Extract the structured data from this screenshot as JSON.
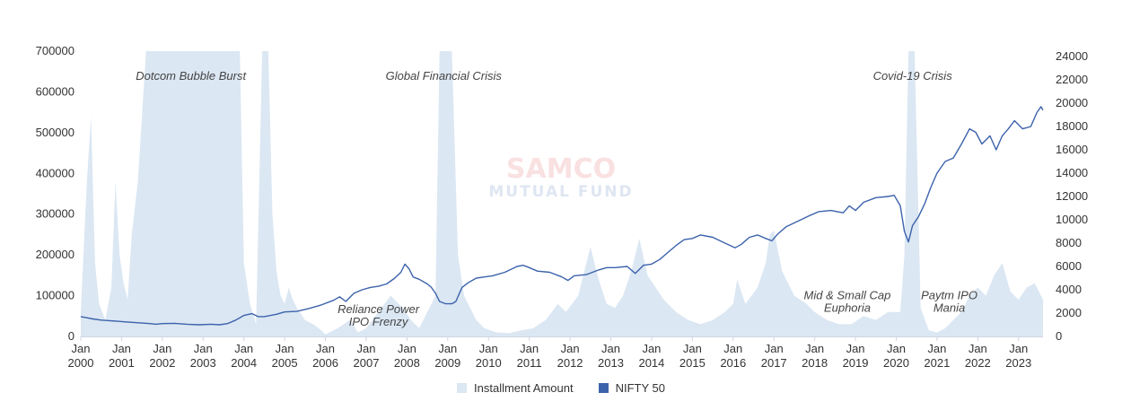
{
  "colors": {
    "installment": "#dbe7f3",
    "nifty": "#3c62ab",
    "axis": "#cfd6e0"
  },
  "watermark": {
    "line1": "SAMCO",
    "line2": "MUTUAL FUND"
  },
  "chart_data": {
    "type": "bar+line",
    "x_range": [
      2000.0,
      2023.6
    ],
    "x_ticks": [
      {
        "pos": 2000,
        "month": "Jan",
        "year": "2000"
      },
      {
        "pos": 2001,
        "month": "Jan",
        "year": "2001"
      },
      {
        "pos": 2002,
        "month": "Jan",
        "year": "2002"
      },
      {
        "pos": 2003,
        "month": "Jan",
        "year": "2003"
      },
      {
        "pos": 2004,
        "month": "Jan",
        "year": "2004"
      },
      {
        "pos": 2005,
        "month": "Jan",
        "year": "2005"
      },
      {
        "pos": 2006,
        "month": "Jan",
        "year": "2006"
      },
      {
        "pos": 2007,
        "month": "Jan",
        "year": "2007"
      },
      {
        "pos": 2008,
        "month": "Jan",
        "year": "2008"
      },
      {
        "pos": 2009,
        "month": "Jan",
        "year": "2009"
      },
      {
        "pos": 2010,
        "month": "Jan",
        "year": "2010"
      },
      {
        "pos": 2011,
        "month": "Jan",
        "year": "2011"
      },
      {
        "pos": 2012,
        "month": "Jan",
        "year": "2012"
      },
      {
        "pos": 2013,
        "month": "Jan",
        "year": "2013"
      },
      {
        "pos": 2014,
        "month": "Jan",
        "year": "2014"
      },
      {
        "pos": 2015,
        "month": "Jan",
        "year": "2015"
      },
      {
        "pos": 2016,
        "month": "Jan",
        "year": "2016"
      },
      {
        "pos": 2017,
        "month": "Jan",
        "year": "2017"
      },
      {
        "pos": 2018,
        "month": "Jan",
        "year": "2018"
      },
      {
        "pos": 2019,
        "month": "Jan",
        "year": "2019"
      },
      {
        "pos": 2020,
        "month": "Jan",
        "year": "2020"
      },
      {
        "pos": 2021,
        "month": "Jan",
        "year": "2021"
      },
      {
        "pos": 2022,
        "month": "Jan",
        "year": "2022"
      },
      {
        "pos": 2023,
        "month": "Jan",
        "year": "2023"
      }
    ],
    "y_left": {
      "min": 0,
      "max": 700000,
      "ticks": [
        "0",
        "100000",
        "200000",
        "300000",
        "400000",
        "500000",
        "600000",
        "700000"
      ]
    },
    "y_right": {
      "min": 0,
      "max": 24000,
      "ticks": [
        "0",
        "2000",
        "4000",
        "6000",
        "8000",
        "10000",
        "12000",
        "14000",
        "16000",
        "18000",
        "20000",
        "22000",
        "24000"
      ]
    },
    "legend": {
      "position": "bottom-center",
      "items": [
        "Installment Amount",
        "NIFTY 50"
      ]
    },
    "annotations": [
      {
        "x": 2002.7,
        "y": 22000,
        "lines": [
          "Dotcom Bubble Burst"
        ]
      },
      {
        "x": 2008.9,
        "y": 22000,
        "lines": [
          "Global Financial Crisis"
        ]
      },
      {
        "x": 2020.4,
        "y": 22000,
        "lines": [
          "Covid-19 Crisis"
        ]
      },
      {
        "x": 2007.3,
        "y": 2000,
        "lines": [
          "Reliance Power",
          "IPO Frenzy"
        ]
      },
      {
        "x": 2018.8,
        "y": 3200,
        "lines": [
          "Mid & Small Cap",
          "Euphoria"
        ]
      },
      {
        "x": 2021.3,
        "y": 3200,
        "lines": [
          "Paytm IPO",
          "Mania"
        ]
      }
    ],
    "series": [
      {
        "name": "Installment Amount",
        "type": "area",
        "axis": "left",
        "x": [
          2000.0,
          2000.15,
          2000.25,
          2000.35,
          2000.45,
          2000.6,
          2000.75,
          2000.85,
          2000.95,
          2001.05,
          2001.15,
          2001.25,
          2001.4,
          2001.6,
          2001.75,
          2001.9,
          2002.0,
          2002.5,
          2003.0,
          2003.5,
          2003.9,
          2004.0,
          2004.15,
          2004.3,
          2004.45,
          2004.5,
          2004.6,
          2004.7,
          2004.8,
          2004.9,
          2005.0,
          2005.1,
          2005.2,
          2005.3,
          2005.5,
          2005.7,
          2005.9,
          2006.0,
          2006.3,
          2006.6,
          2006.8,
          2007.0,
          2007.3,
          2007.6,
          2007.9,
          2008.1,
          2008.3,
          2008.5,
          2008.7,
          2008.8,
          2008.9,
          2009.1,
          2009.25,
          2009.4,
          2009.5,
          2009.7,
          2009.9,
          2010.2,
          2010.5,
          2010.8,
          2011.1,
          2011.4,
          2011.7,
          2011.9,
          2012.2,
          2012.4,
          2012.5,
          2012.7,
          2012.9,
          2013.1,
          2013.3,
          2013.5,
          2013.7,
          2013.9,
          2014.1,
          2014.3,
          2014.6,
          2014.9,
          2015.2,
          2015.5,
          2015.8,
          2016.0,
          2016.1,
          2016.3,
          2016.6,
          2016.8,
          2016.9,
          2017.0,
          2017.2,
          2017.5,
          2017.8,
          2018.0,
          2018.3,
          2018.6,
          2018.9,
          2019.2,
          2019.5,
          2019.8,
          2020.1,
          2020.2,
          2020.3,
          2020.45,
          2020.6,
          2020.8,
          2021.0,
          2021.2,
          2021.4,
          2021.6,
          2021.8,
          2022.0,
          2022.2,
          2022.4,
          2022.6,
          2022.8,
          2023.0,
          2023.2,
          2023.4,
          2023.6
        ],
        "values": [
          60000,
          380000,
          540000,
          180000,
          80000,
          40000,
          120000,
          380000,
          200000,
          130000,
          90000,
          250000,
          380000,
          700000,
          700000,
          700000,
          700000,
          700000,
          700000,
          700000,
          700000,
          180000,
          80000,
          30000,
          700000,
          700000,
          700000,
          300000,
          160000,
          100000,
          80000,
          120000,
          90000,
          70000,
          40000,
          30000,
          15000,
          5000,
          20000,
          40000,
          10000,
          20000,
          60000,
          100000,
          70000,
          40000,
          20000,
          60000,
          100000,
          700000,
          700000,
          700000,
          200000,
          100000,
          80000,
          40000,
          20000,
          10000,
          8000,
          15000,
          20000,
          40000,
          80000,
          60000,
          100000,
          180000,
          220000,
          140000,
          80000,
          70000,
          100000,
          160000,
          240000,
          150000,
          120000,
          90000,
          60000,
          40000,
          30000,
          40000,
          60000,
          80000,
          140000,
          80000,
          120000,
          180000,
          250000,
          260000,
          160000,
          100000,
          80000,
          60000,
          40000,
          30000,
          30000,
          50000,
          40000,
          60000,
          60000,
          200000,
          700000,
          700000,
          70000,
          15000,
          10000,
          20000,
          40000,
          60000,
          100000,
          120000,
          100000,
          150000,
          180000,
          110000,
          90000,
          120000,
          130000,
          90000
        ]
      },
      {
        "name": "NIFTY 50",
        "type": "line",
        "axis": "right",
        "x": [
          2000.0,
          2000.15,
          2000.3,
          2000.5,
          2000.7,
          2000.9,
          2001.1,
          2001.3,
          2001.5,
          2001.7,
          2001.85,
          2002.0,
          2002.3,
          2002.6,
          2002.9,
          2003.2,
          2003.4,
          2003.6,
          2003.8,
          2004.0,
          2004.2,
          2004.35,
          2004.5,
          2004.8,
          2005.0,
          2005.3,
          2005.6,
          2005.9,
          2006.2,
          2006.35,
          2006.5,
          2006.7,
          2006.9,
          2007.1,
          2007.3,
          2007.5,
          2007.7,
          2007.85,
          2007.95,
          2008.05,
          2008.15,
          2008.3,
          2008.5,
          2008.6,
          2008.7,
          2008.8,
          2008.95,
          2009.1,
          2009.2,
          2009.35,
          2009.5,
          2009.7,
          2009.9,
          2010.1,
          2010.4,
          2010.7,
          2010.85,
          2011.0,
          2011.2,
          2011.5,
          2011.8,
          2011.95,
          2012.1,
          2012.4,
          2012.7,
          2012.9,
          2013.1,
          2013.4,
          2013.6,
          2013.8,
          2014.0,
          2014.2,
          2014.4,
          2014.6,
          2014.8,
          2015.0,
          2015.2,
          2015.5,
          2015.8,
          2016.05,
          2016.2,
          2016.4,
          2016.6,
          2016.8,
          2016.95,
          2017.1,
          2017.3,
          2017.6,
          2017.9,
          2018.1,
          2018.4,
          2018.7,
          2018.85,
          2019.0,
          2019.2,
          2019.5,
          2019.8,
          2019.95,
          2020.1,
          2020.2,
          2020.3,
          2020.4,
          2020.55,
          2020.7,
          2020.85,
          2021.0,
          2021.2,
          2021.4,
          2021.6,
          2021.8,
          2021.95,
          2022.1,
          2022.3,
          2022.45,
          2022.6,
          2022.75,
          2022.9,
          2023.1,
          2023.3,
          2023.45,
          2023.55,
          2023.6
        ],
        "values": [
          1700,
          1600,
          1500,
          1400,
          1350,
          1300,
          1250,
          1200,
          1150,
          1100,
          1050,
          1100,
          1120,
          1050,
          1000,
          1050,
          1000,
          1100,
          1400,
          1800,
          1950,
          1700,
          1700,
          1900,
          2100,
          2150,
          2400,
          2700,
          3100,
          3400,
          3000,
          3700,
          4000,
          4200,
          4300,
          4500,
          5000,
          5500,
          6200,
          5800,
          5100,
          4900,
          4500,
          4200,
          3700,
          3000,
          2800,
          2800,
          3000,
          4200,
          4600,
          5000,
          5100,
          5200,
          5500,
          6000,
          6100,
          5900,
          5600,
          5500,
          5100,
          4800,
          5200,
          5300,
          5700,
          5900,
          5900,
          6000,
          5400,
          6100,
          6200,
          6600,
          7200,
          7800,
          8300,
          8400,
          8700,
          8500,
          8000,
          7600,
          7900,
          8500,
          8700,
          8400,
          8200,
          8800,
          9400,
          9900,
          10400,
          10700,
          10800,
          10600,
          11200,
          10800,
          11500,
          11900,
          12000,
          12100,
          11200,
          9000,
          8100,
          9500,
          10300,
          11400,
          12800,
          14000,
          15000,
          15300,
          16500,
          17800,
          17500,
          16500,
          17200,
          16000,
          17200,
          17800,
          18500,
          17800,
          18000,
          19200,
          19700,
          19400
        ]
      }
    ]
  }
}
